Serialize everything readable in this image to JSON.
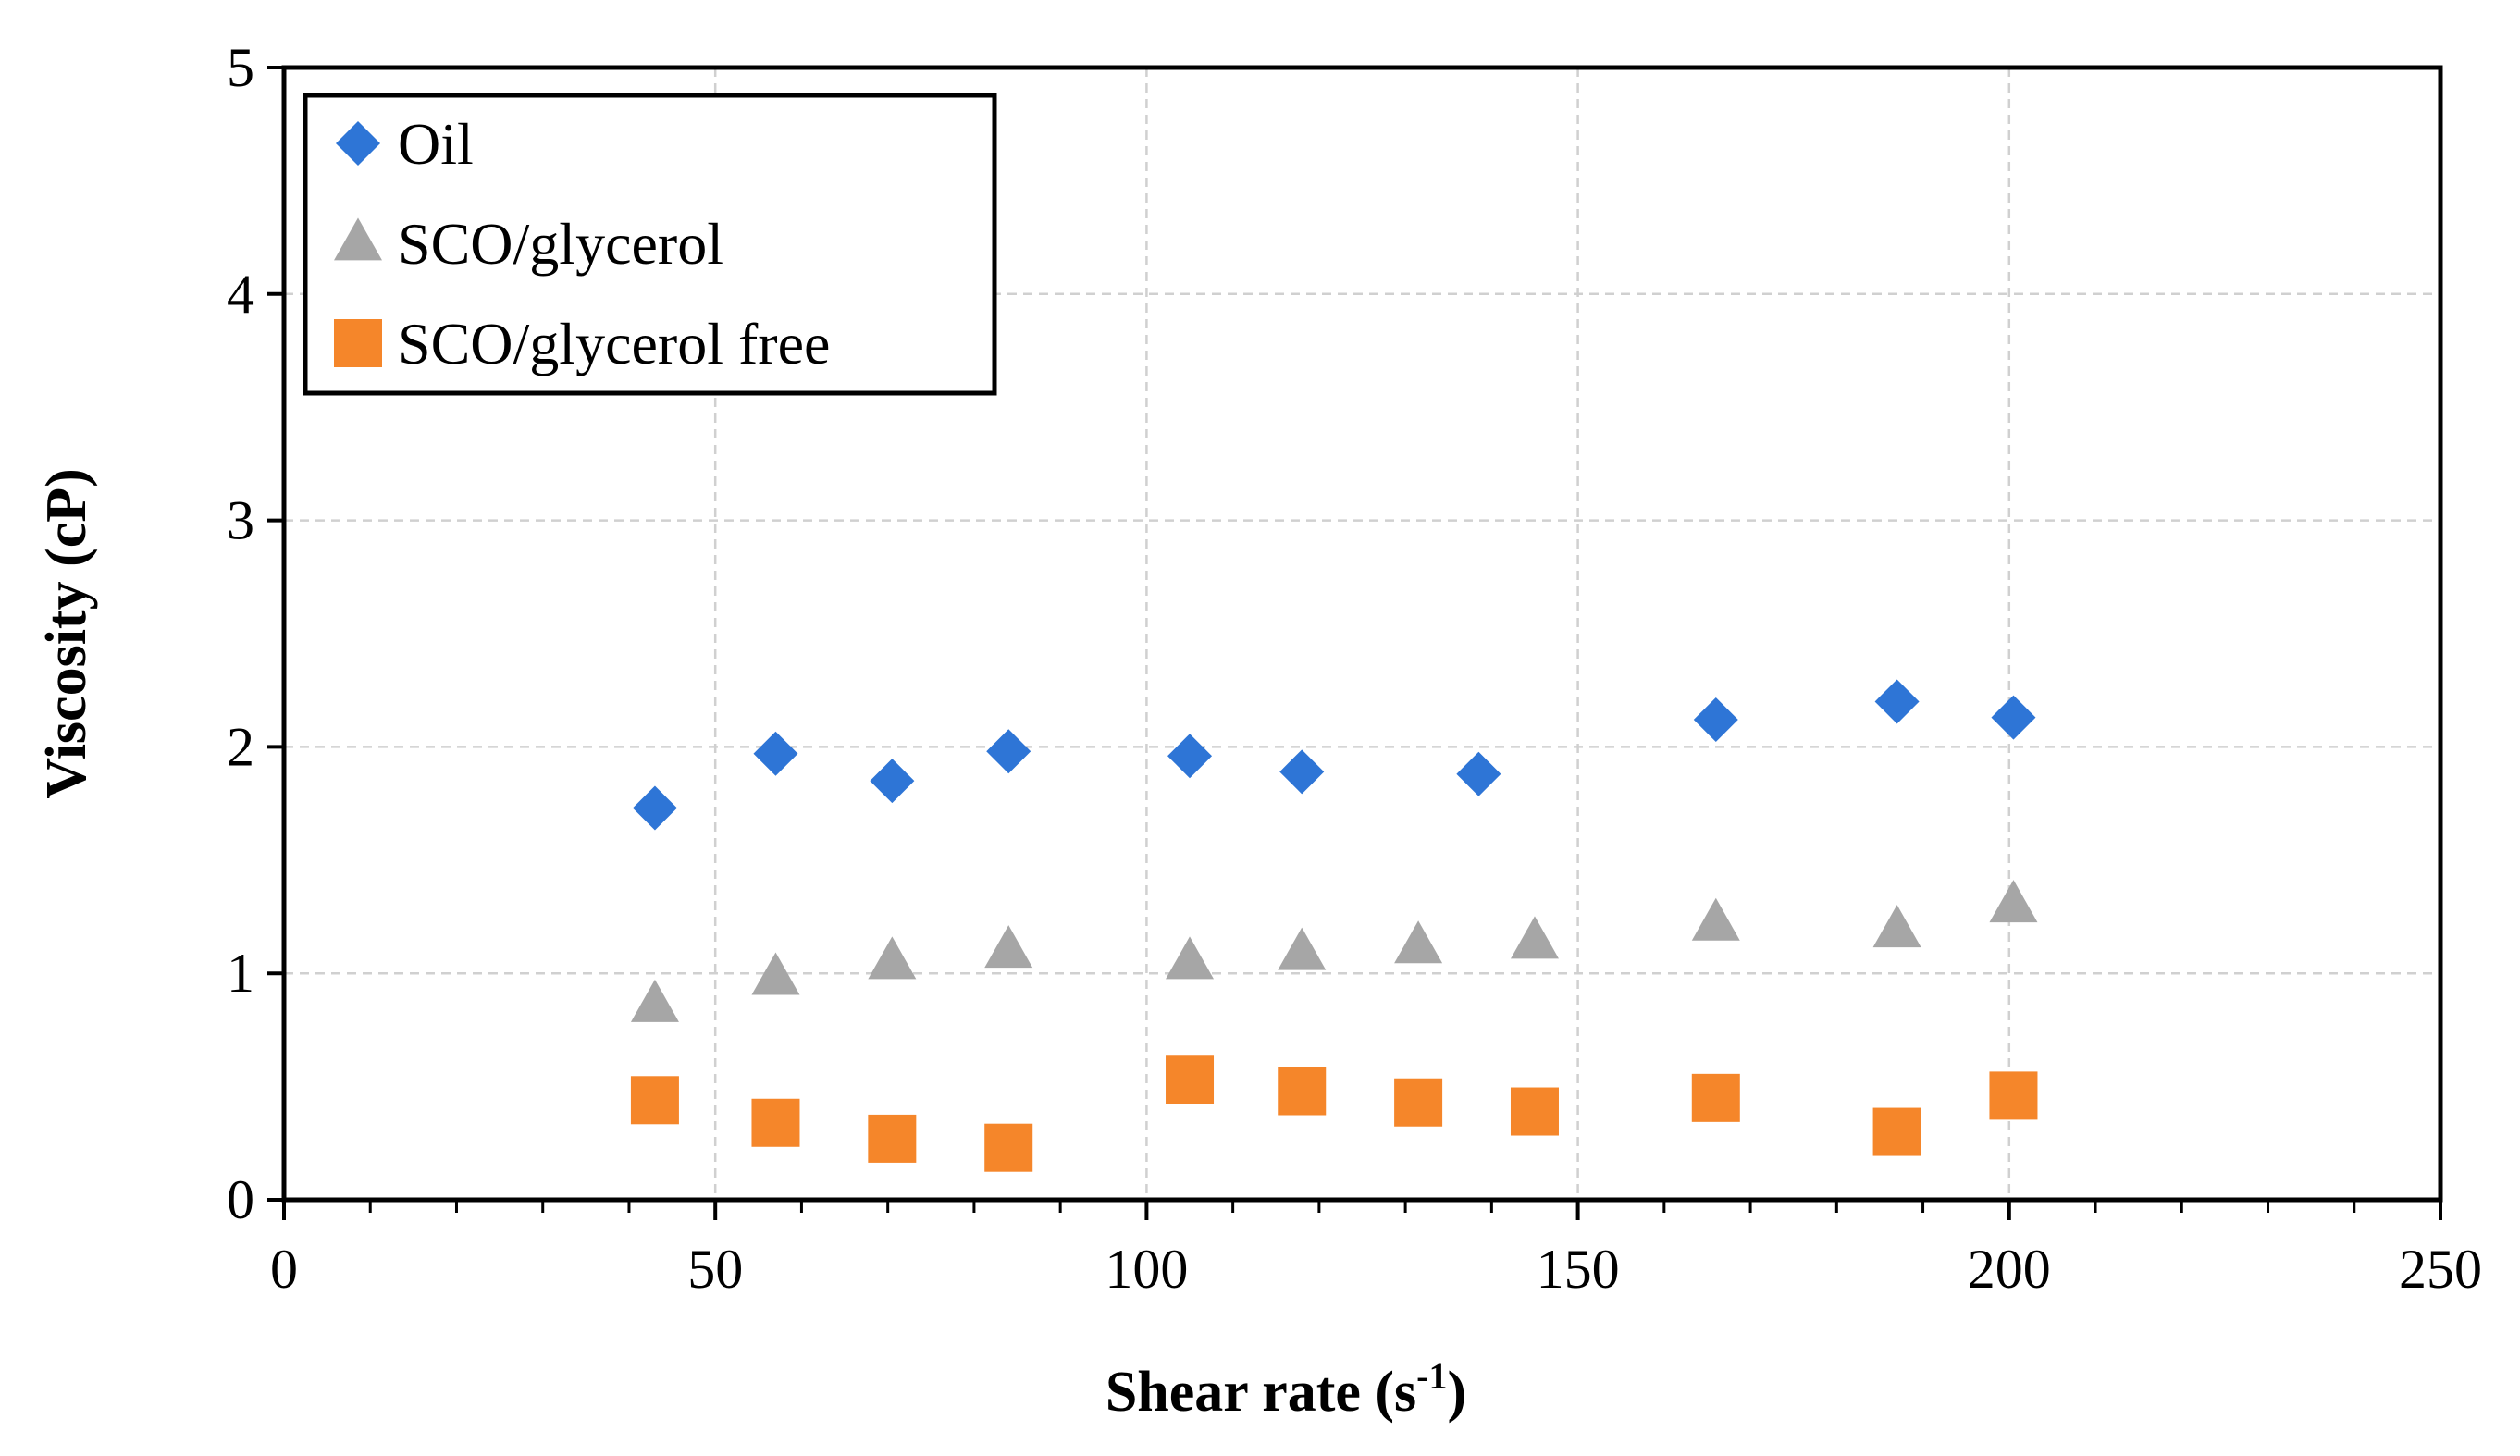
{
  "chart_data": {
    "type": "scatter",
    "title": "",
    "xlabel": "Shear rate (s",
    "xlabel_sup": "-1",
    "xlabel_close": ")",
    "ylabel": "Viscosity (cP)",
    "xlim": [
      0,
      250
    ],
    "ylim": [
      0,
      5
    ],
    "xticks": [
      0,
      50,
      100,
      150,
      200,
      250
    ],
    "yticks": [
      0,
      1,
      2,
      3,
      4,
      5
    ],
    "xticks_minor_step": 10,
    "grid": true,
    "legend_position": "top-left",
    "series": [
      {
        "name": "Oil",
        "marker": "diamond",
        "color": "#2E75D6",
        "points": [
          [
            43,
            1.73
          ],
          [
            57,
            1.97
          ],
          [
            70.5,
            1.85
          ],
          [
            84,
            1.98
          ],
          [
            105,
            1.96
          ],
          [
            118,
            1.89
          ],
          [
            138.5,
            1.88
          ],
          [
            166,
            2.12
          ],
          [
            187,
            2.2
          ],
          [
            200.5,
            2.13
          ]
        ]
      },
      {
        "name": "SCO/glycerol",
        "marker": "triangle",
        "color": "#A6A6A6",
        "points": [
          [
            43,
            0.86
          ],
          [
            57,
            0.98
          ],
          [
            70.5,
            1.05
          ],
          [
            84,
            1.1
          ],
          [
            105,
            1.05
          ],
          [
            118,
            1.09
          ],
          [
            131.5,
            1.12
          ],
          [
            145,
            1.14
          ],
          [
            166,
            1.22
          ],
          [
            187,
            1.19
          ],
          [
            200.5,
            1.3
          ]
        ]
      },
      {
        "name": "SCO/glycerol free",
        "marker": "square",
        "color": "#F5862A",
        "points": [
          [
            43,
            0.44
          ],
          [
            57,
            0.34
          ],
          [
            70.5,
            0.27
          ],
          [
            84,
            0.23
          ],
          [
            105,
            0.53
          ],
          [
            118,
            0.48
          ],
          [
            131.5,
            0.43
          ],
          [
            145,
            0.39
          ],
          [
            166,
            0.45
          ],
          [
            187,
            0.3
          ],
          [
            200.5,
            0.46
          ]
        ]
      }
    ]
  }
}
